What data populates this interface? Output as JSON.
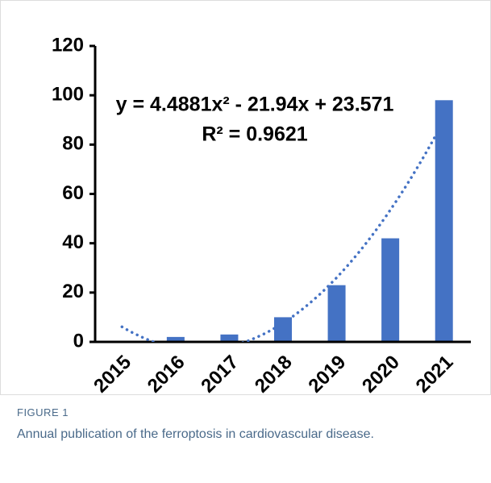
{
  "chart_data": {
    "type": "bar",
    "categories": [
      "2015",
      "2016",
      "2017",
      "2018",
      "2019",
      "2020",
      "2021"
    ],
    "values": [
      0,
      2,
      3,
      10,
      23,
      42,
      98
    ],
    "color": "#4472c4",
    "ylim": [
      0,
      120
    ],
    "yticks": [
      0,
      20,
      40,
      60,
      80,
      100,
      120
    ],
    "trendline": {
      "equation": "y = 4.4881x² - 21.94x + 23.571",
      "r2": "R² = 0.9621",
      "coefficients": [
        4.4881,
        -21.94,
        23.571
      ],
      "color": "#4472c4"
    }
  },
  "caption": {
    "label": "FIGURE 1",
    "text": "Annual publication of the ferroptosis in cardiovascular disease."
  }
}
